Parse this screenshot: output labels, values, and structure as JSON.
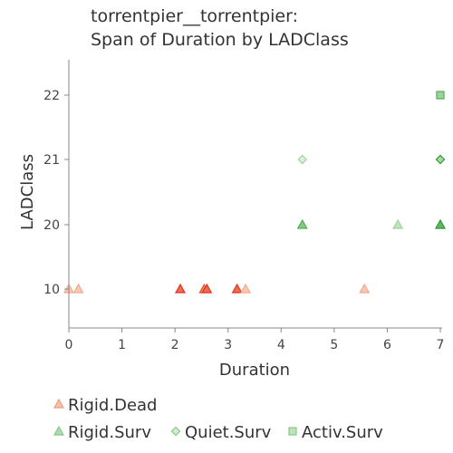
{
  "chart_data": {
    "type": "scatter",
    "title_lines": [
      "torrentpier__torrentpier:",
      "Span of Duration by LADClass"
    ],
    "xlabel": "Duration",
    "ylabel": "LADClass",
    "xlim": [
      0,
      7
    ],
    "x_ticks": [
      "0",
      "1",
      "2",
      "3",
      "4",
      "5",
      "6",
      "7"
    ],
    "y_categories": [
      "10",
      "20",
      "21",
      "22"
    ],
    "grid": false,
    "legend_position": "bottom",
    "series": [
      {
        "name": "Rigid.Dead",
        "marker": "triangle",
        "points": [
          {
            "x": 0.0,
            "y": "10",
            "color": "#f9b49a"
          },
          {
            "x": 0.18,
            "y": "10",
            "color": "#f9b49a"
          },
          {
            "x": 2.1,
            "y": "10",
            "color": "#e8391c"
          },
          {
            "x": 2.55,
            "y": "10",
            "color": "#ee5a33"
          },
          {
            "x": 2.6,
            "y": "10",
            "color": "#e8391c"
          },
          {
            "x": 3.17,
            "y": "10",
            "color": "#e8391c"
          },
          {
            "x": 3.33,
            "y": "10",
            "color": "#f9b49a"
          },
          {
            "x": 5.57,
            "y": "10",
            "color": "#f9b49a"
          }
        ]
      },
      {
        "name": "Rigid.Surv",
        "marker": "triangle",
        "points": [
          {
            "x": 4.4,
            "y": "20",
            "color": "#5ab65a"
          },
          {
            "x": 6.2,
            "y": "20",
            "color": "#a8dca8"
          },
          {
            "x": 7.0,
            "y": "20",
            "color": "#2e9e2e"
          }
        ]
      },
      {
        "name": "Quiet.Surv",
        "marker": "diamond",
        "points": [
          {
            "x": 4.4,
            "y": "21",
            "color": "#a8dca8"
          },
          {
            "x": 7.0,
            "y": "21",
            "color": "#2e9e2e"
          }
        ]
      },
      {
        "name": "Activ.Surv",
        "marker": "square",
        "points": [
          {
            "x": 7.0,
            "y": "22",
            "color": "#5ab65a"
          }
        ]
      }
    ],
    "legend_colors": {
      "Rigid.Dead": "#f9a98a",
      "Rigid.Surv": "#8fd08f",
      "Quiet.Surv": "#8fd08f",
      "Activ.Surv": "#8fd08f"
    }
  }
}
